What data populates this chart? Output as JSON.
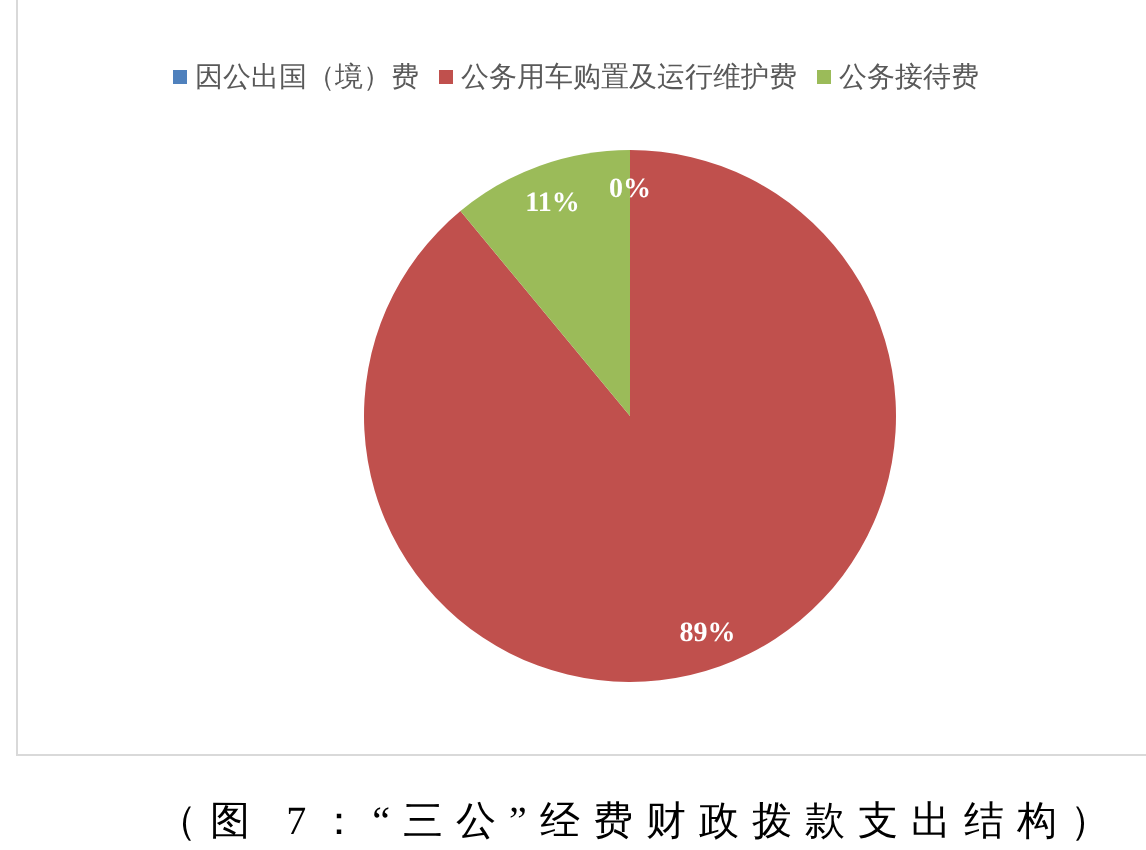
{
  "chart_data": {
    "type": "pie",
    "categories": [
      "因公出国（境）费",
      "公务用车购置及运行维护费",
      "公务接待费"
    ],
    "values": [
      0,
      89,
      11
    ],
    "colors": [
      "#4f81bd",
      "#c0504d",
      "#9bbb59"
    ],
    "value_labels": [
      "0%",
      "89%",
      "11%"
    ],
    "legend": "top",
    "annotations": [
      "（图 7：“三公”经费财政拨款支出结构）"
    ]
  }
}
